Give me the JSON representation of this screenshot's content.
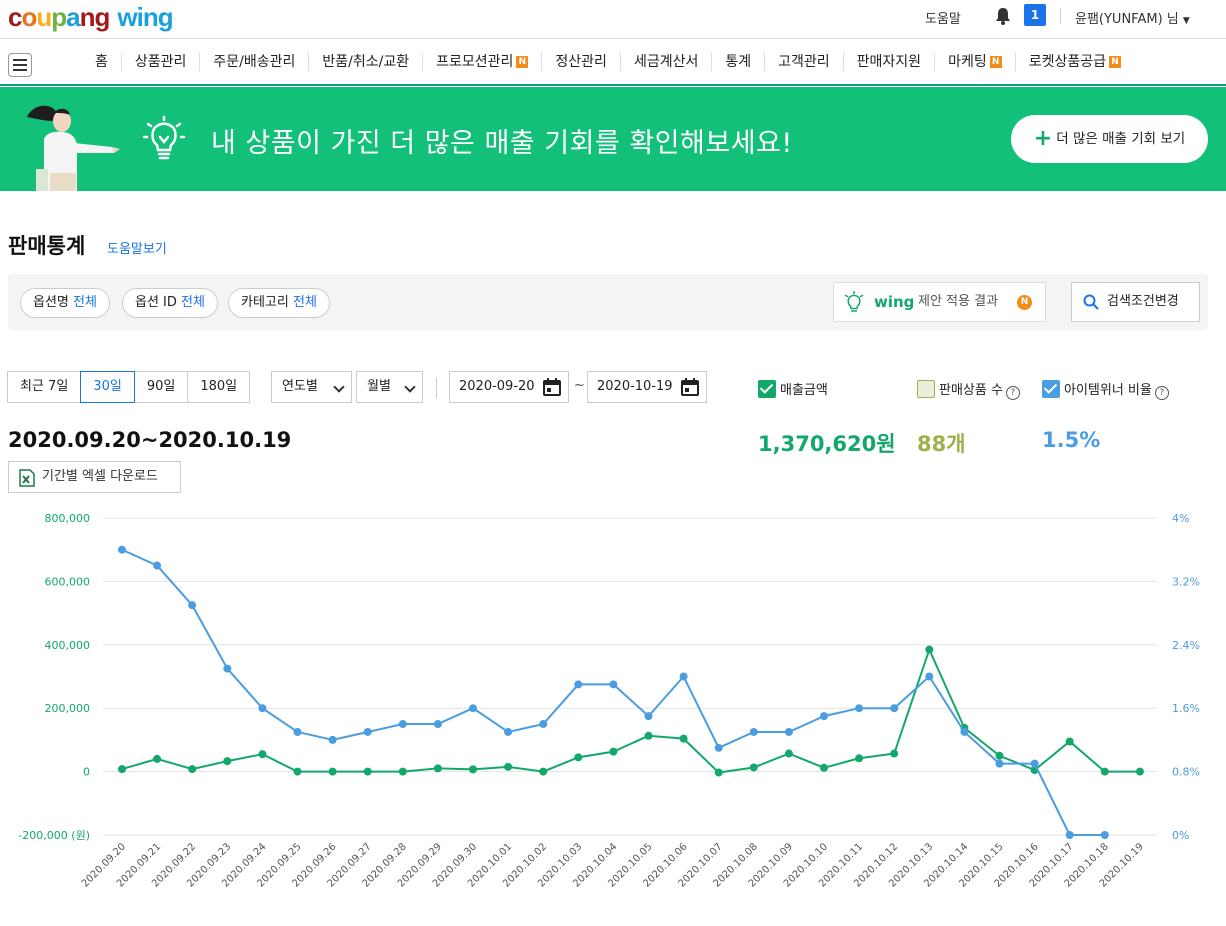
{
  "header": {
    "logo_parts": [
      "c",
      "o",
      "u",
      "p",
      "a",
      "ng"
    ],
    "logo_wing": "wing",
    "help": "도움말",
    "notification_count": "1",
    "user": "윤팸(YUNFAM) 님"
  },
  "nav": {
    "items": [
      {
        "label": "홈",
        "new": false
      },
      {
        "label": "상품관리",
        "new": false
      },
      {
        "label": "주문/배송관리",
        "new": false
      },
      {
        "label": "반품/취소/교환",
        "new": false
      },
      {
        "label": "프로모션관리",
        "new": true
      },
      {
        "label": "정산관리",
        "new": false
      },
      {
        "label": "세금계산서",
        "new": false
      },
      {
        "label": "통계",
        "new": false
      },
      {
        "label": "고객관리",
        "new": false
      },
      {
        "label": "판매자지원",
        "new": false
      },
      {
        "label": "마케팅",
        "new": true
      },
      {
        "label": "로켓상품공급",
        "new": true
      }
    ],
    "new_badge": "N"
  },
  "banner": {
    "text": "내 상품이 가진 더 많은 매출 기회를 확인해보세요!",
    "button": "더 많은 매출 기회 보기",
    "button_plus": "+"
  },
  "page": {
    "title": "판매통계",
    "help_link": "도움말보기"
  },
  "filters": {
    "chips": [
      {
        "label": "옵션명",
        "value": "전체"
      },
      {
        "label": "옵션 ID",
        "value": "전체"
      },
      {
        "label": "카테고리",
        "value": "전체"
      }
    ],
    "wing_word": "wing",
    "wing_text": "제안 적용 결과",
    "wing_badge": "N",
    "search_button": "검색조건변경"
  },
  "period": {
    "tabs": [
      "최근 7일",
      "30일",
      "90일",
      "180일"
    ],
    "active_tab": "30일",
    "year_select": "연도별",
    "month_select": "월별",
    "start_date": "2020-09-20",
    "end_date": "2020-10-19",
    "tilde": "~"
  },
  "legend": {
    "sales": "매출금액",
    "count": "판매상품 수",
    "ratio": "아이템위너 비율",
    "help_mark": "?"
  },
  "summary": {
    "range": "2020.09.20~2020.10.19",
    "sales_total": "1,370,620원",
    "count_total": "88개",
    "ratio_total": "1.5%"
  },
  "excel_button": "기간별 엑셀 다운로드",
  "colors": {
    "sales": "#12a86a",
    "ratio": "#4a9de0",
    "count": "#9bb34a",
    "accent": "#1a73e8",
    "banner": "#12c07a"
  },
  "chart_data": {
    "type": "line",
    "categories": [
      "2020.09.20",
      "2020.09.21",
      "2020.09.22",
      "2020.09.23",
      "2020.09.24",
      "2020.09.25",
      "2020.09.26",
      "2020.09.27",
      "2020.09.28",
      "2020.09.29",
      "2020.09.30",
      "2020.10.01",
      "2020.10.02",
      "2020.10.03",
      "2020.10.04",
      "2020.10.05",
      "2020.10.06",
      "2020.10.07",
      "2020.10.08",
      "2020.10.09",
      "2020.10.10",
      "2020.10.11",
      "2020.10.12",
      "2020.10.13",
      "2020.10.14",
      "2020.10.15",
      "2020.10.16",
      "2020.10.17",
      "2020.10.18",
      "2020.10.19"
    ],
    "left_axis": {
      "ticks": [
        -200000,
        0,
        200000,
        400000,
        600000,
        800000
      ],
      "tick_labels": [
        "-200,000 (원)",
        "0",
        "200,000",
        "400,000",
        "600,000",
        "800,000"
      ],
      "ylim": [
        -200000,
        800000
      ]
    },
    "right_axis": {
      "ticks": [
        0,
        0.8,
        1.6,
        2.4,
        3.2,
        4
      ],
      "tick_labels": [
        "0%",
        "0.8%",
        "1.6%",
        "2.4%",
        "3.2%",
        "4%"
      ],
      "ylim": [
        0,
        4
      ]
    },
    "series": [
      {
        "name": "매출금액",
        "axis": "left",
        "color": "#12a86a",
        "values": [
          8000,
          40000,
          8000,
          33000,
          55000,
          0,
          0,
          0,
          0,
          10000,
          7000,
          15000,
          0,
          45000,
          63000,
          113000,
          104000,
          -3000,
          13000,
          57000,
          12000,
          42000,
          57000,
          385000,
          138000,
          50000,
          5000,
          95000,
          0,
          0
        ]
      },
      {
        "name": "아이템위너 비율",
        "axis": "right",
        "color": "#4a9de0",
        "values": [
          3.6,
          3.4,
          2.9,
          2.1,
          1.6,
          1.3,
          1.2,
          1.3,
          1.4,
          1.4,
          1.6,
          1.3,
          1.4,
          1.9,
          1.9,
          1.5,
          2.0,
          1.1,
          1.3,
          1.3,
          1.5,
          1.6,
          1.6,
          2.0,
          1.3,
          0.9,
          0.9,
          0.0,
          0.0,
          null
        ]
      }
    ]
  }
}
